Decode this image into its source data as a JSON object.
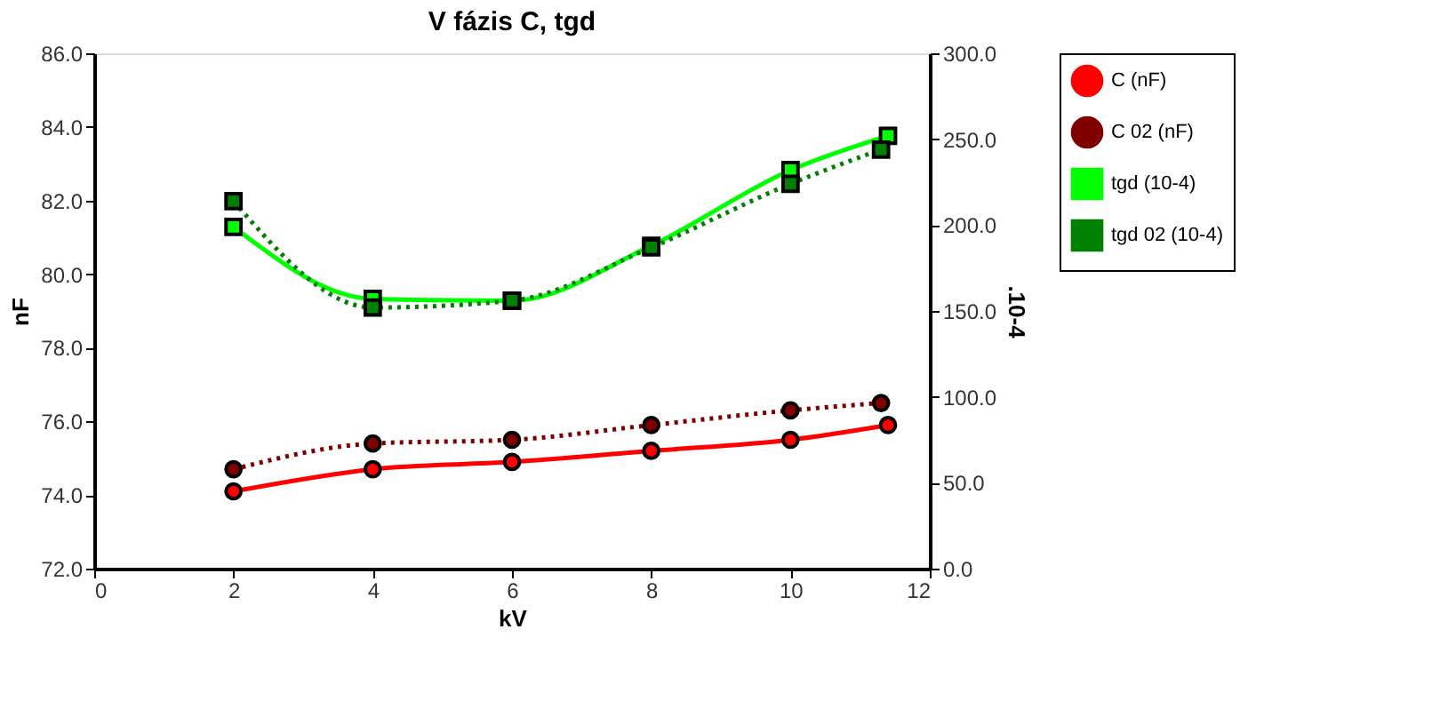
{
  "chart_data": {
    "type": "line",
    "title": "V fázis C, tgd",
    "xlabel": "kV",
    "ylabel": "nF",
    "y2label": ".10-4",
    "xlim": [
      0,
      12
    ],
    "xticks": [
      0,
      2,
      4,
      6,
      8,
      10,
      12
    ],
    "ylim": [
      72,
      86
    ],
    "yticks": [
      {
        "value": 72,
        "label": "72.0"
      },
      {
        "value": 74,
        "label": "74.0"
      },
      {
        "value": 76,
        "label": "76.0"
      },
      {
        "value": 78,
        "label": "78.0"
      },
      {
        "value": 80,
        "label": "80.0"
      },
      {
        "value": 82,
        "label": "82.0"
      },
      {
        "value": 84,
        "label": "84.0"
      },
      {
        "value": 86,
        "label": "86.0"
      }
    ],
    "y2lim": [
      0,
      300
    ],
    "y2ticks": [
      {
        "value": 0,
        "label": "0.0"
      },
      {
        "value": 50,
        "label": "50.0"
      },
      {
        "value": 100,
        "label": "100.0"
      },
      {
        "value": 150,
        "label": "150.0"
      },
      {
        "value": 200,
        "label": "200.0"
      },
      {
        "value": 250,
        "label": "250.0"
      },
      {
        "value": 300,
        "label": "300.0"
      }
    ],
    "grid": false,
    "legend": "top right",
    "series": [
      {
        "name": "C (nF)",
        "color": "#ff0000",
        "marker": "circle",
        "line_style": "solid",
        "x": [
          2,
          4,
          6,
          8,
          10,
          11.4
        ],
        "values": [
          74.1,
          74.7,
          74.9,
          75.2,
          75.5,
          75.9
        ]
      },
      {
        "name": "C 02 (nF)",
        "color": "#800000",
        "marker": "circle",
        "line_style": "dotted",
        "x": [
          2,
          4,
          6,
          8,
          10,
          11.3
        ],
        "values": [
          74.7,
          75.4,
          75.5,
          75.9,
          76.3,
          76.5
        ]
      },
      {
        "name": "tgd (10-4)",
        "color": "#00ff00",
        "marker": "square",
        "line_style": "solid",
        "axis": "y2",
        "x": [
          2,
          4,
          6,
          8,
          10,
          11.4
        ],
        "values": [
          199,
          157,
          156,
          188,
          232,
          252
        ]
      },
      {
        "name": "tgd 02 (10-4)",
        "color": "#008000",
        "marker": "square",
        "line_style": "dotted",
        "axis": "y2",
        "x": [
          2,
          4,
          6,
          8,
          10,
          11.3
        ],
        "values": [
          214,
          152,
          156,
          187,
          224,
          244
        ]
      }
    ]
  }
}
